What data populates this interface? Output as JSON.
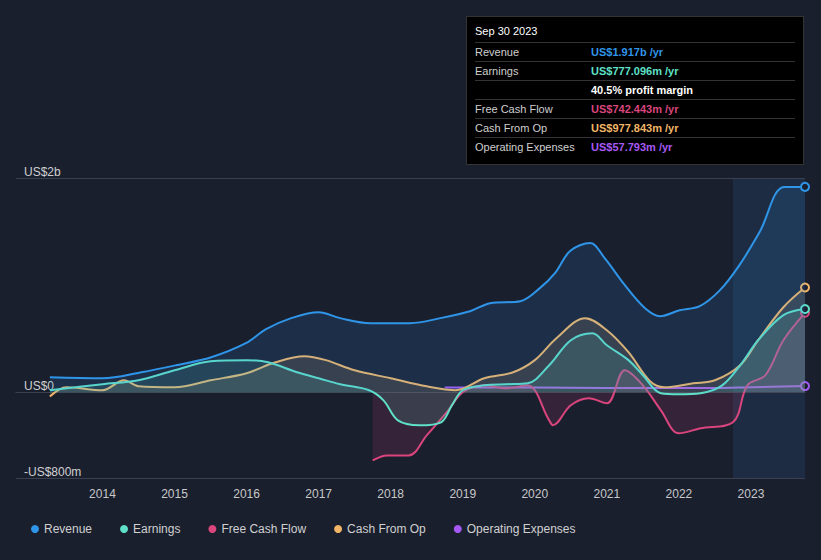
{
  "chart_data": {
    "type": "line",
    "xlim": [
      2012.8,
      2023.75
    ],
    "xticks": [
      2014,
      2015,
      2016,
      2017,
      2018,
      2019,
      2020,
      2021,
      2022,
      2023
    ],
    "ylim": [
      -800,
      2000
    ],
    "yticks": [
      {
        "value": -800,
        "label": "-US$800m"
      },
      {
        "value": 0,
        "label": "US$0"
      },
      {
        "value": 2000,
        "label": "US$2b"
      }
    ],
    "grid": true,
    "legend": "bottom-left",
    "shaded_range": [
      2022.75,
      2023.75
    ],
    "series": [
      {
        "name": "Revenue",
        "color": "#2f95e8",
        "x": [
          2013.27,
          2014.0,
          2014.54,
          2015.02,
          2015.51,
          2015.99,
          2016.27,
          2016.62,
          2017.0,
          2017.3,
          2017.72,
          2018.27,
          2018.69,
          2019.1,
          2019.38,
          2019.8,
          2020.07,
          2020.28,
          2020.49,
          2020.77,
          2020.97,
          2021.25,
          2021.53,
          2021.74,
          2022.01,
          2022.29,
          2022.57,
          2022.84,
          2023.12,
          2023.46,
          2023.75
        ],
        "values": [
          140,
          131,
          187,
          252,
          327,
          458,
          589,
          692,
          748,
          692,
          645,
          645,
          692,
          757,
          832,
          850,
          972,
          1112,
          1318,
          1393,
          1252,
          1000,
          785,
          710,
          766,
          804,
          953,
          1187,
          1495,
          1916,
          1917
        ]
      },
      {
        "name": "Earnings",
        "color": "#5fe0c8",
        "x": [
          2013.27,
          2014.0,
          2014.5,
          2015.0,
          2015.5,
          2016.0,
          2016.3,
          2016.7,
          2017.0,
          2017.3,
          2017.7,
          2017.9,
          2018.1,
          2018.4,
          2018.7,
          2018.85,
          2019.0,
          2019.3,
          2019.6,
          2019.9,
          2020.2,
          2020.5,
          2020.8,
          2021.0,
          2021.3,
          2021.5,
          2021.75,
          2022.0,
          2022.3,
          2022.6,
          2022.85,
          2023.1,
          2023.45,
          2023.75
        ],
        "values": [
          20,
          75,
          112,
          205,
          290,
          300,
          280,
          187,
          131,
          75,
          19,
          -75,
          -262,
          -308,
          -280,
          -121,
          19,
          65,
          75,
          84,
          252,
          486,
          551,
          439,
          300,
          159,
          -9,
          -19,
          -9,
          65,
          252,
          486,
          720,
          777
        ]
      },
      {
        "name": "Free Cash Flow",
        "color": "#d9457c",
        "x": [
          2017.75,
          2017.95,
          2018.25,
          2018.5,
          2018.8,
          2019.0,
          2019.3,
          2019.6,
          2019.9,
          2020.2,
          2020.25,
          2020.5,
          2020.75,
          2021.0,
          2021.25,
          2021.5,
          2021.75,
          2022.0,
          2022.3,
          2022.75,
          2022.95,
          2023.2,
          2023.45,
          2023.75
        ],
        "values": [
          -636,
          -589,
          -589,
          -402,
          -168,
          0,
          65,
          37,
          65,
          -262,
          -308,
          -121,
          -56,
          -103,
          205,
          65,
          -168,
          -383,
          -336,
          -280,
          65,
          159,
          486,
          742
        ]
      },
      {
        "name": "Cash From Op",
        "color": "#f0b567",
        "x": [
          2013.27,
          2013.5,
          2014.0,
          2014.3,
          2014.5,
          2015.0,
          2015.5,
          2016.0,
          2016.4,
          2016.8,
          2017.1,
          2017.5,
          2018.0,
          2018.5,
          2018.9,
          2019.3,
          2019.7,
          2020.0,
          2020.3,
          2020.7,
          2021.0,
          2021.3,
          2021.6,
          2021.8,
          2022.2,
          2022.5,
          2022.85,
          2023.1,
          2023.45,
          2023.75
        ],
        "values": [
          -40,
          47,
          19,
          112,
          56,
          47,
          112,
          178,
          280,
          336,
          300,
          205,
          131,
          56,
          19,
          131,
          187,
          300,
          505,
          692,
          579,
          374,
          103,
          47,
          84,
          112,
          252,
          486,
          794,
          978
        ]
      },
      {
        "name": "Operating Expenses",
        "color": "#a658f5",
        "x": [
          2018.75,
          2019.5,
          2020.5,
          2021.5,
          2022.5,
          2023.0,
          2023.75
        ],
        "values": [
          45,
          45,
          42,
          40,
          40,
          48,
          58
        ]
      }
    ],
    "annotation": {
      "title": "Sep 30 2023",
      "rows": [
        {
          "label": "Revenue",
          "value": "US$1.917b /yr",
          "color": "#2f95e8"
        },
        {
          "label": "Earnings",
          "value": "US$777.096m /yr",
          "color": "#5fe0c8"
        },
        {
          "value": "40.5% profit margin"
        },
        {
          "label": "Free Cash Flow",
          "value": "US$742.443m /yr",
          "color": "#d9457c"
        },
        {
          "label": "Cash From Op",
          "value": "US$977.843m /yr",
          "color": "#f0b567"
        },
        {
          "label": "Operating Expenses",
          "value": "US$57.793m /yr",
          "color": "#a658f5"
        }
      ]
    }
  }
}
